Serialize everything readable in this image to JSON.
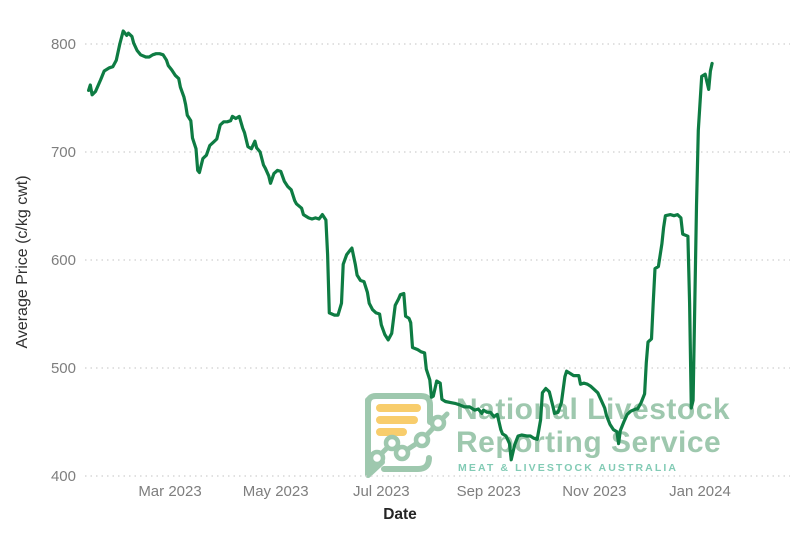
{
  "watermark": {
    "line1": "National Livestock",
    "line2": "Reporting Service",
    "subtitle": "MEAT & LIVESTOCK AUSTRALIA"
  },
  "colors": {
    "series_line": "#0e7c43",
    "grid": "#cfcfcf",
    "tick_label": "#7e7e7e",
    "axis_title": "#303030",
    "watermark_green": "#9ec8ae",
    "watermark_teal": "#82cbb5",
    "watermark_yellow": "#f8cd6c",
    "background": "#ffffff"
  },
  "chart_data": {
    "type": "line",
    "title": "",
    "xlabel": "Date",
    "ylabel": "Average Price (c/kg cwt)",
    "grid": "horizontal-dotted",
    "legend": "none",
    "y_ticks": [
      800,
      700,
      600,
      500,
      400
    ],
    "ylim": [
      395,
      825
    ],
    "x_ticks": [
      {
        "date": "2023-03-01",
        "label": "Mar 2023"
      },
      {
        "date": "2023-05-01",
        "label": "May 2023"
      },
      {
        "date": "2023-07-01",
        "label": "Jul 2023"
      },
      {
        "date": "2023-09-01",
        "label": "Sep 2023"
      },
      {
        "date": "2023-11-01",
        "label": "Nov 2023"
      },
      {
        "date": "2024-01-01",
        "label": "Jan 2024"
      }
    ],
    "x_range": [
      "2023-01-13",
      "2024-01-08"
    ],
    "series": [
      {
        "name": "Average Price (c/kg cwt)",
        "points": [
          [
            "2023-01-13",
            757
          ],
          [
            "2023-01-14",
            762
          ],
          [
            "2023-01-15",
            753
          ],
          [
            "2023-01-17",
            756
          ],
          [
            "2023-01-20",
            767
          ],
          [
            "2023-01-22",
            775
          ],
          [
            "2023-01-25",
            778
          ],
          [
            "2023-01-27",
            779
          ],
          [
            "2023-01-29",
            785
          ],
          [
            "2023-01-31",
            800
          ],
          [
            "2023-02-02",
            812
          ],
          [
            "2023-02-04",
            808
          ],
          [
            "2023-02-05",
            810
          ],
          [
            "2023-02-07",
            807
          ],
          [
            "2023-02-08",
            801
          ],
          [
            "2023-02-10",
            794
          ],
          [
            "2023-02-12",
            790
          ],
          [
            "2023-02-15",
            788
          ],
          [
            "2023-02-17",
            788
          ],
          [
            "2023-02-19",
            790
          ],
          [
            "2023-02-21",
            791
          ],
          [
            "2023-02-23",
            791
          ],
          [
            "2023-02-25",
            790
          ],
          [
            "2023-02-27",
            785
          ],
          [
            "2023-02-28",
            780
          ],
          [
            "2023-03-02",
            776
          ],
          [
            "2023-03-04",
            771
          ],
          [
            "2023-03-06",
            768
          ],
          [
            "2023-03-07",
            760
          ],
          [
            "2023-03-09",
            751
          ],
          [
            "2023-03-10",
            744
          ],
          [
            "2023-03-11",
            734
          ],
          [
            "2023-03-13",
            729
          ],
          [
            "2023-03-14",
            713
          ],
          [
            "2023-03-16",
            703
          ],
          [
            "2023-03-17",
            683
          ],
          [
            "2023-03-18",
            681
          ],
          [
            "2023-03-20",
            694
          ],
          [
            "2023-03-22",
            697
          ],
          [
            "2023-03-24",
            706
          ],
          [
            "2023-03-26",
            709
          ],
          [
            "2023-03-28",
            712
          ],
          [
            "2023-03-30",
            725
          ],
          [
            "2023-04-01",
            728
          ],
          [
            "2023-04-03",
            728
          ],
          [
            "2023-04-05",
            729
          ],
          [
            "2023-04-06",
            733
          ],
          [
            "2023-04-08",
            731
          ],
          [
            "2023-04-10",
            733
          ],
          [
            "2023-04-12",
            722
          ],
          [
            "2023-04-13",
            718
          ],
          [
            "2023-04-15",
            705
          ],
          [
            "2023-04-17",
            703
          ],
          [
            "2023-04-19",
            710
          ],
          [
            "2023-04-20",
            704
          ],
          [
            "2023-04-22",
            700
          ],
          [
            "2023-04-24",
            688
          ],
          [
            "2023-04-25",
            685
          ],
          [
            "2023-04-27",
            678
          ],
          [
            "2023-04-28",
            671
          ],
          [
            "2023-04-30",
            680
          ],
          [
            "2023-05-02",
            683
          ],
          [
            "2023-05-04",
            682
          ],
          [
            "2023-05-06",
            673
          ],
          [
            "2023-05-08",
            668
          ],
          [
            "2023-05-10",
            665
          ],
          [
            "2023-05-12",
            655
          ],
          [
            "2023-05-13",
            652
          ],
          [
            "2023-05-16",
            648
          ],
          [
            "2023-05-17",
            642
          ],
          [
            "2023-05-20",
            639
          ],
          [
            "2023-05-22",
            638
          ],
          [
            "2023-05-24",
            639
          ],
          [
            "2023-05-26",
            638
          ],
          [
            "2023-05-28",
            642
          ],
          [
            "2023-05-30",
            637
          ],
          [
            "2023-05-31",
            605
          ],
          [
            "2023-06-01",
            551
          ],
          [
            "2023-06-04",
            549
          ],
          [
            "2023-06-06",
            549
          ],
          [
            "2023-06-08",
            560
          ],
          [
            "2023-06-09",
            596
          ],
          [
            "2023-06-11",
            605
          ],
          [
            "2023-06-13",
            609
          ],
          [
            "2023-06-14",
            611
          ],
          [
            "2023-06-16",
            596
          ],
          [
            "2023-06-17",
            586
          ],
          [
            "2023-06-19",
            581
          ],
          [
            "2023-06-21",
            580
          ],
          [
            "2023-06-23",
            570
          ],
          [
            "2023-06-24",
            560
          ],
          [
            "2023-06-26",
            554
          ],
          [
            "2023-06-28",
            551
          ],
          [
            "2023-06-30",
            550
          ],
          [
            "2023-07-01",
            540
          ],
          [
            "2023-07-03",
            531
          ],
          [
            "2023-07-05",
            526
          ],
          [
            "2023-07-07",
            532
          ],
          [
            "2023-07-09",
            558
          ],
          [
            "2023-07-11",
            564
          ],
          [
            "2023-07-12",
            568
          ],
          [
            "2023-07-14",
            569
          ],
          [
            "2023-07-15",
            548
          ],
          [
            "2023-07-17",
            546
          ],
          [
            "2023-07-18",
            542
          ],
          [
            "2023-07-19",
            519
          ],
          [
            "2023-07-22",
            517
          ],
          [
            "2023-07-24",
            515
          ],
          [
            "2023-07-26",
            514
          ],
          [
            "2023-07-27",
            499
          ],
          [
            "2023-07-29",
            489
          ],
          [
            "2023-07-30",
            473
          ],
          [
            "2023-07-31",
            474
          ],
          [
            "2023-08-02",
            488
          ],
          [
            "2023-08-04",
            486
          ],
          [
            "2023-08-05",
            471
          ],
          [
            "2023-08-07",
            469
          ],
          [
            "2023-08-10",
            468
          ],
          [
            "2023-08-13",
            467
          ],
          [
            "2023-08-15",
            466
          ],
          [
            "2023-08-18",
            464
          ],
          [
            "2023-08-21",
            464
          ],
          [
            "2023-08-24",
            461
          ],
          [
            "2023-08-26",
            462
          ],
          [
            "2023-08-28",
            458
          ],
          [
            "2023-08-29",
            461
          ],
          [
            "2023-08-31",
            459
          ],
          [
            "2023-09-02",
            459
          ],
          [
            "2023-09-04",
            455
          ],
          [
            "2023-09-06",
            457
          ],
          [
            "2023-09-08",
            443
          ],
          [
            "2023-09-09",
            439
          ],
          [
            "2023-09-11",
            437
          ],
          [
            "2023-09-13",
            430
          ],
          [
            "2023-09-14",
            415
          ],
          [
            "2023-09-16",
            429
          ],
          [
            "2023-09-18",
            437
          ],
          [
            "2023-09-20",
            438
          ],
          [
            "2023-09-23",
            437
          ],
          [
            "2023-09-25",
            437
          ],
          [
            "2023-09-27",
            435
          ],
          [
            "2023-09-29",
            434
          ],
          [
            "2023-10-01",
            452
          ],
          [
            "2023-10-02",
            477
          ],
          [
            "2023-10-04",
            481
          ],
          [
            "2023-10-06",
            478
          ],
          [
            "2023-10-08",
            465
          ],
          [
            "2023-10-09",
            458
          ],
          [
            "2023-10-11",
            459
          ],
          [
            "2023-10-13",
            468
          ],
          [
            "2023-10-15",
            492
          ],
          [
            "2023-10-16",
            497
          ],
          [
            "2023-10-18",
            495
          ],
          [
            "2023-10-20",
            493
          ],
          [
            "2023-10-23",
            493
          ],
          [
            "2023-10-24",
            485
          ],
          [
            "2023-10-26",
            486
          ],
          [
            "2023-10-28",
            485
          ],
          [
            "2023-10-30",
            483
          ],
          [
            "2023-11-01",
            480
          ],
          [
            "2023-11-03",
            477
          ],
          [
            "2023-11-05",
            470
          ],
          [
            "2023-11-07",
            463
          ],
          [
            "2023-11-08",
            456
          ],
          [
            "2023-11-10",
            448
          ],
          [
            "2023-11-12",
            443
          ],
          [
            "2023-11-14",
            441
          ],
          [
            "2023-11-15",
            430
          ],
          [
            "2023-11-16",
            442
          ],
          [
            "2023-11-18",
            450
          ],
          [
            "2023-11-20",
            457
          ],
          [
            "2023-11-22",
            460
          ],
          [
            "2023-11-25",
            462
          ],
          [
            "2023-11-26",
            462
          ],
          [
            "2023-11-28",
            468
          ],
          [
            "2023-11-30",
            476
          ],
          [
            "2023-12-01",
            505
          ],
          [
            "2023-12-02",
            524
          ],
          [
            "2023-12-04",
            527
          ],
          [
            "2023-12-05",
            560
          ],
          [
            "2023-12-06",
            592
          ],
          [
            "2023-12-08",
            594
          ],
          [
            "2023-12-10",
            615
          ],
          [
            "2023-12-11",
            630
          ],
          [
            "2023-12-12",
            641
          ],
          [
            "2023-12-15",
            642
          ],
          [
            "2023-12-17",
            641
          ],
          [
            "2023-12-19",
            642
          ],
          [
            "2023-12-21",
            639
          ],
          [
            "2023-12-22",
            624
          ],
          [
            "2023-12-25",
            622
          ],
          [
            "2023-12-26",
            560
          ],
          [
            "2023-12-27",
            463
          ],
          [
            "2023-12-28",
            470
          ],
          [
            "2023-12-29",
            560
          ],
          [
            "2023-12-30",
            650
          ],
          [
            "2023-12-31",
            720
          ],
          [
            "2024-01-02",
            770
          ],
          [
            "2024-01-04",
            772
          ],
          [
            "2024-01-05",
            765
          ],
          [
            "2024-01-06",
            758
          ],
          [
            "2024-01-07",
            775
          ],
          [
            "2024-01-08",
            782
          ]
        ]
      }
    ]
  }
}
